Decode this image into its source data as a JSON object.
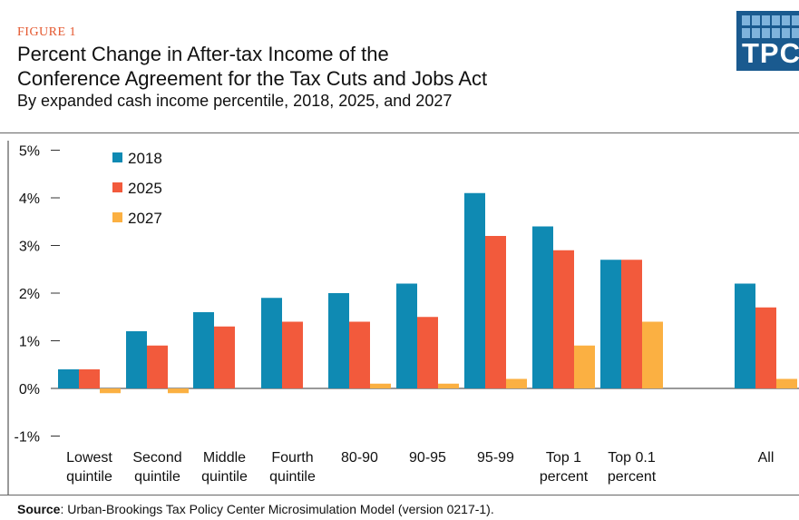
{
  "header": {
    "figure_label": "FIGURE 1",
    "title_line1": "Percent Change in After-tax Income of the",
    "title_line2": "Conference Agreement for the Tax Cuts and Jobs Act",
    "subtitle": "By expanded cash income percentile, 2018, 2025, and 2027"
  },
  "logo": {
    "text": "TPC",
    "color": "#1a5a8f"
  },
  "footer": {
    "source_label": "Source",
    "source_text": ": Urban-Brookings Tax Policy Center Microsimulation Model (version 0217-1)."
  },
  "chart_data": {
    "type": "bar",
    "categories": [
      [
        "Lowest",
        "quintile"
      ],
      [
        "Second",
        "quintile"
      ],
      [
        "Middle",
        "quintile"
      ],
      [
        "Fourth",
        "quintile"
      ],
      [
        "80-90"
      ],
      [
        "90-95"
      ],
      [
        "95-99"
      ],
      [
        "Top 1",
        "percent"
      ],
      [
        "Top 0.1",
        "percent"
      ],
      [
        "All"
      ]
    ],
    "series": [
      {
        "name": "2018",
        "color": "#0f8ab3",
        "values": [
          0.4,
          1.2,
          1.6,
          1.9,
          2.0,
          2.2,
          4.1,
          3.4,
          2.7,
          2.2
        ]
      },
      {
        "name": "2025",
        "color": "#f25a3c",
        "values": [
          0.4,
          0.9,
          1.3,
          1.4,
          1.4,
          1.5,
          3.2,
          2.9,
          2.7,
          1.7
        ]
      },
      {
        "name": "2027",
        "color": "#fbb042",
        "values": [
          -0.1,
          -0.1,
          0.0,
          0.0,
          0.1,
          0.1,
          0.2,
          0.9,
          1.4,
          0.2
        ]
      }
    ],
    "y_ticks": [
      "5%",
      "4%",
      "3%",
      "2%",
      "1%",
      "0%",
      "-1%"
    ],
    "ylim": [
      -1,
      5
    ],
    "legend_position": "top-left",
    "grid": false
  }
}
